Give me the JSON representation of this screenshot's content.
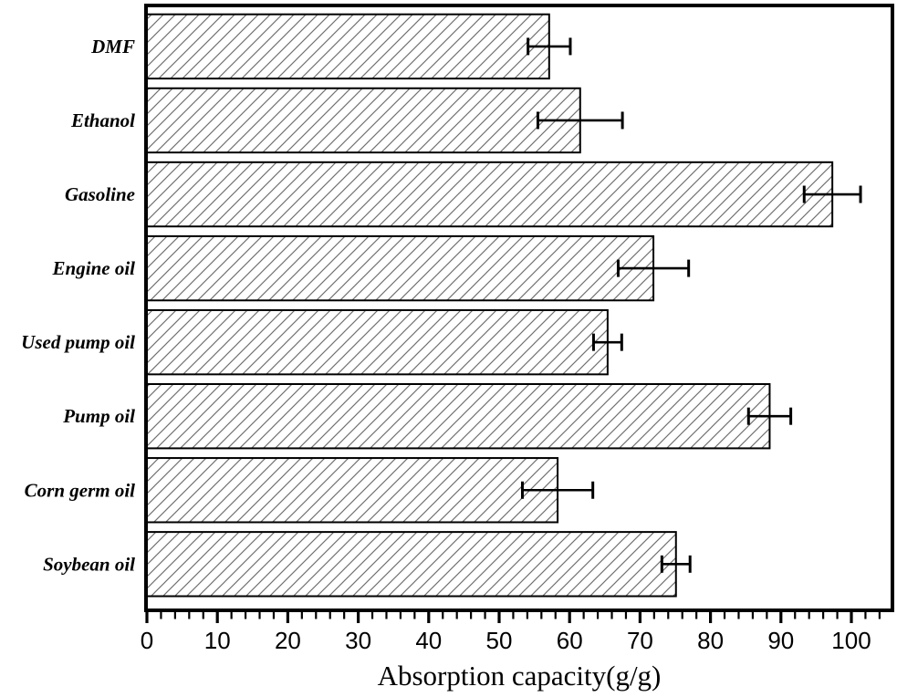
{
  "chart_data": {
    "type": "bar",
    "orientation": "horizontal",
    "title": "",
    "xlabel": "Absorption capacity(g/g)",
    "ylabel": "",
    "categories": [
      "DMF",
      "Ethanol",
      "Gasoline",
      "Engine oil",
      "Used pump oil",
      "Pump oil",
      "Corn germ oil",
      "Soybean oil"
    ],
    "values": [
      57.1,
      61.5,
      97.3,
      71.9,
      65.4,
      88.4,
      58.3,
      75.1
    ],
    "error_bars": [
      3.0,
      6.0,
      4.0,
      5.0,
      2.0,
      3.0,
      5.0,
      2.0
    ],
    "xlim": [
      0,
      106
    ],
    "xticks": [
      0,
      10,
      20,
      30,
      40,
      50,
      60,
      70,
      80,
      90,
      100
    ],
    "xtick_minor_step": 2,
    "grid": false,
    "legend": null,
    "style": {
      "bar_fill": "#ffffff",
      "bar_hatch": "forward-diagonal",
      "hatch_color": "#6f6f6f",
      "frame_color": "#000000",
      "error_bar_color": "#000000",
      "text_color": "#000000"
    }
  }
}
